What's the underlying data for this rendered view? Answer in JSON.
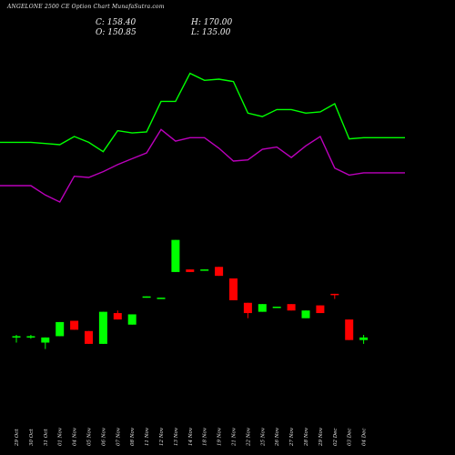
{
  "header": {
    "title": "ANGELONE 2500  CE Option  Chart MunafaSutra.com",
    "close_text": "C: 158.40",
    "open_text": "O: 150.85",
    "high_text": "H: 170.00",
    "low_text": "L: 135.00"
  },
  "colors": {
    "background": "#000000",
    "up_candle": "#00ff00",
    "down_candle": "#ff0000",
    "green_line": "#00ff00",
    "magenta_line": "#bb00bb",
    "text": "#e8e8e8"
  },
  "chart_data": {
    "type": "candlestick",
    "title": "ANGELONE 2500  CE Option  Chart MunafaSutra.com",
    "categories": [
      "29 Oct",
      "30 Oct",
      "31 Oct",
      "01 Nov",
      "04 Nov",
      "05 Nov",
      "06 Nov",
      "07 Nov",
      "08 Nov",
      "11 Nov",
      "12 Nov",
      "13 Nov",
      "14 Nov",
      "18 Nov",
      "19 Nov",
      "21 Nov",
      "22 Nov",
      "25 Nov",
      "26 Nov",
      "27 Nov",
      "28 Nov",
      "29 Nov",
      "02 Dec",
      "03 Dec",
      "04 Dec"
    ],
    "candles_date_labels": [
      "29 Oct",
      "30 Oct",
      "31 Oct",
      "01 Nov",
      "04 Nov",
      "05 Nov",
      "06 Nov",
      "07 Nov",
      "08 Nov",
      "11 Nov",
      "12 Nov",
      "13 Nov",
      "14 Nov",
      "18 Nov",
      "19 Nov",
      "21 Nov",
      "22 Nov",
      "25 Nov",
      "26 Nov",
      "27 Nov",
      "28 Nov",
      "29 Nov",
      "02 Dec",
      "03 Dec",
      "04 Dec"
    ],
    "candles": [
      {
        "open": 75,
        "high": 77,
        "low": 71,
        "close": 76
      },
      {
        "open": 75,
        "high": 77,
        "low": 74,
        "close": 76
      },
      {
        "open": 71,
        "high": 75,
        "low": 66,
        "close": 75
      },
      {
        "open": 76,
        "high": 87,
        "low": 76,
        "close": 87
      },
      {
        "open": 88,
        "high": 88,
        "low": 81,
        "close": 81
      },
      {
        "open": 80,
        "high": 80,
        "low": 70,
        "close": 70
      },
      {
        "open": 70,
        "high": 95,
        "low": 70,
        "close": 95
      },
      {
        "open": 94,
        "high": 96,
        "low": 89,
        "close": 89
      },
      {
        "open": 85,
        "high": 93,
        "low": 85,
        "close": 93
      },
      {
        "open": 107,
        "high": 107,
        "low": 106,
        "close": 107
      },
      {
        "open": 106,
        "high": 106,
        "low": 105,
        "close": 106
      },
      {
        "open": 126,
        "high": 151,
        "low": 126,
        "close": 151
      },
      {
        "open": 128,
        "high": 128,
        "low": 126,
        "close": 126
      },
      {
        "open": 127,
        "high": 128,
        "low": 127,
        "close": 128
      },
      {
        "open": 130,
        "high": 130,
        "low": 123,
        "close": 123
      },
      {
        "open": 121,
        "high": 121,
        "low": 104,
        "close": 104
      },
      {
        "open": 102,
        "high": 102,
        "low": 90,
        "close": 94
      },
      {
        "open": 95,
        "high": 101,
        "low": 95,
        "close": 101
      },
      {
        "open": 99,
        "high": 99,
        "low": 98,
        "close": 99
      },
      {
        "open": 101,
        "high": 101,
        "low": 96,
        "close": 96
      },
      {
        "open": 90,
        "high": 96,
        "low": 90,
        "close": 96
      },
      {
        "open": 100,
        "high": 100,
        "low": 94,
        "close": 94
      },
      {
        "open": 109,
        "high": 109,
        "low": 105,
        "close": 108
      },
      {
        "open": 89,
        "high": 89,
        "low": 73,
        "close": 73
      },
      {
        "open": 73,
        "high": 77,
        "low": 70,
        "close": 75
      }
    ],
    "ma_green": [
      225,
      225,
      224,
      223,
      230,
      225,
      217,
      235,
      233,
      234,
      260,
      260,
      284,
      278,
      279,
      277,
      250,
      247,
      253,
      253,
      250,
      251,
      258,
      228,
      229
    ],
    "ma_magenta": [
      188,
      188,
      180,
      174,
      196,
      195,
      200,
      206,
      211,
      216,
      236,
      226,
      229,
      229,
      220,
      209,
      210,
      219,
      221,
      212,
      222,
      230,
      203,
      197,
      199
    ],
    "xlabel": "",
    "ylabel": "",
    "grid": false
  }
}
